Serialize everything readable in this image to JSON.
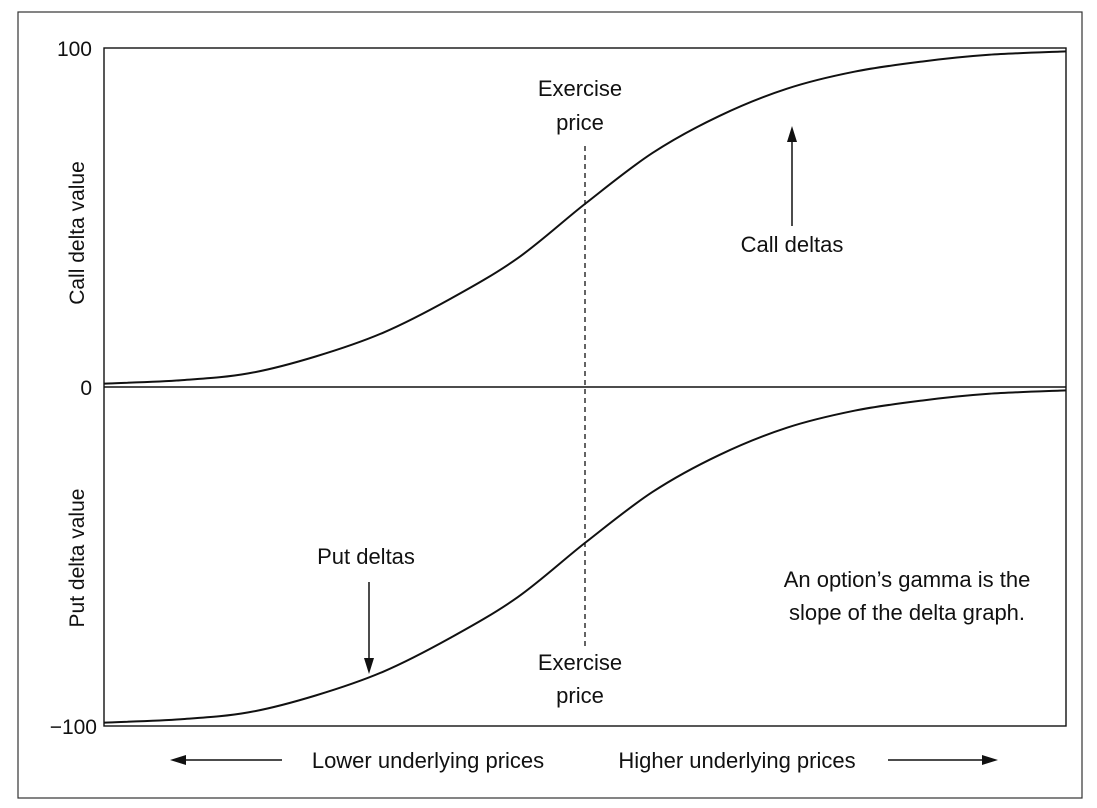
{
  "chart_data": {
    "type": "line",
    "ylim": [
      -100,
      100
    ],
    "yticks": [
      "100",
      "0",
      "−100"
    ],
    "ylabel_top": "Call delta value",
    "ylabel_bottom": "Put delta value",
    "exercise_price_x": 0.5,
    "series": [
      {
        "name": "Call deltas",
        "x": [
          0,
          0.08,
          0.15,
          0.22,
          0.29,
          0.36,
          0.43,
          0.5,
          0.57,
          0.64,
          0.71,
          0.78,
          0.85,
          0.92,
          1.0
        ],
        "values": [
          1,
          2,
          4,
          9,
          16,
          26,
          38,
          54,
          69,
          80,
          88,
          93,
          96,
          98,
          99
        ]
      },
      {
        "name": "Put deltas",
        "x": [
          0,
          0.08,
          0.15,
          0.22,
          0.29,
          0.36,
          0.43,
          0.5,
          0.57,
          0.64,
          0.71,
          0.78,
          0.85,
          0.92,
          1.0
        ],
        "values": [
          -99,
          -98,
          -96,
          -91,
          -84,
          -74,
          -62,
          -46,
          -31,
          -20,
          -12,
          -7,
          -4,
          -2,
          -1
        ]
      }
    ],
    "annotations": {
      "exercise_top_1": "Exercise",
      "exercise_top_2": "price",
      "exercise_bottom_1": "Exercise",
      "exercise_bottom_2": "price",
      "call_deltas": "Call deltas",
      "put_deltas": "Put deltas",
      "gamma_note_1": "An option’s gamma is the",
      "gamma_note_2": "slope of the delta graph.",
      "lower_prices": "Lower underlying prices",
      "higher_prices": "Higher underlying prices"
    }
  }
}
